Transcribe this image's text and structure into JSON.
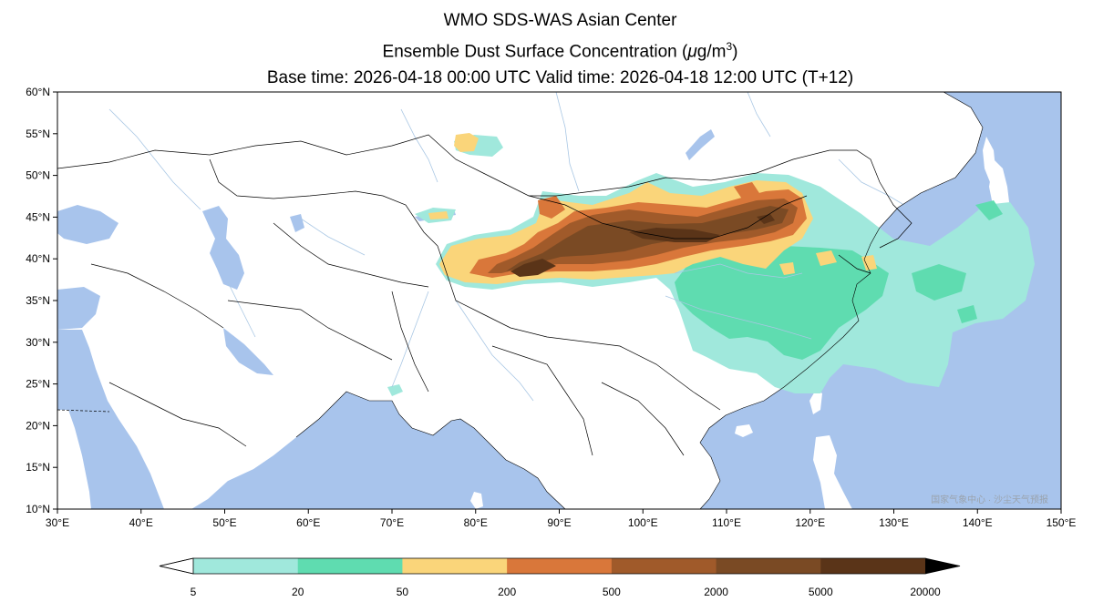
{
  "title": {
    "line1": "WMO SDS-WAS Asian Center",
    "line2_prefix": "Ensemble Dust Surface Concentration (",
    "line2_mu": "μ",
    "line2_units": "g/m",
    "line2_exp": "3",
    "line2_suffix": ")",
    "line3": "Base time: 2026-04-18 00:00 UTC Valid time: 2026-04-18 12:00 UTC (T+12)"
  },
  "map": {
    "lon_range": [
      30,
      150
    ],
    "lat_range": [
      10,
      60
    ],
    "x_ticks": [
      "30°E",
      "40°E",
      "50°E",
      "60°E",
      "70°E",
      "80°E",
      "90°E",
      "100°E",
      "110°E",
      "120°E",
      "130°E",
      "140°E",
      "150°E"
    ],
    "y_ticks": [
      "10°N",
      "15°N",
      "20°N",
      "25°N",
      "30°N",
      "35°N",
      "40°N",
      "45°N",
      "50°N",
      "55°N",
      "60°N"
    ],
    "watermark": "国家气象中心 · 沙尘天气预报",
    "colors": {
      "ocean": "#a8c4ec",
      "land": "#ffffff",
      "border": "#000000",
      "river": "#a9c7e4"
    }
  },
  "colorbar": {
    "levels": [
      "5",
      "20",
      "50",
      "200",
      "500",
      "2000",
      "5000",
      "20000"
    ],
    "colors": [
      "#a0e8dc",
      "#5fdcb0",
      "#fad57a",
      "#d9773a",
      "#a05a2a",
      "#7a4a24",
      "#5a3418",
      "#2e1b10"
    ],
    "extend": "both"
  }
}
